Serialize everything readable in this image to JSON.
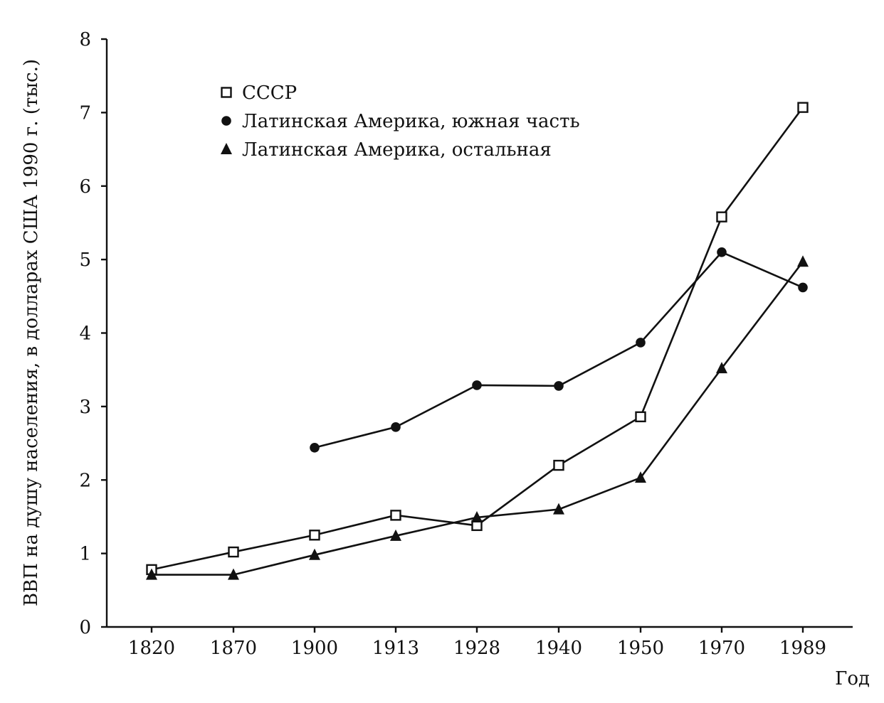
{
  "chart_data": {
    "type": "line",
    "title": "",
    "xlabel": "Год",
    "ylabel": "ВВП на душу населения, в долларах США 1990 г. (тыс.)",
    "categories": [
      "1820",
      "1870",
      "1900",
      "1913",
      "1928",
      "1940",
      "1950",
      "1970",
      "1989"
    ],
    "ylim": [
      0,
      8
    ],
    "yticks": [
      0,
      1,
      2,
      3,
      4,
      5,
      6,
      7,
      8
    ],
    "grid": false,
    "legend_position": "top-left",
    "series": [
      {
        "name": "СССР",
        "marker": "square-open",
        "values": [
          0.78,
          1.02,
          1.25,
          1.52,
          1.38,
          2.2,
          2.86,
          5.58,
          7.07
        ]
      },
      {
        "name": "Латинская Америка, южная часть",
        "marker": "circle-filled",
        "values": [
          null,
          null,
          2.44,
          2.72,
          3.29,
          3.28,
          3.87,
          5.1,
          4.62
        ]
      },
      {
        "name": "Латинская Америка, остальная",
        "marker": "triangle-filled",
        "values": [
          0.71,
          0.71,
          0.98,
          1.24,
          1.49,
          1.6,
          2.03,
          3.52,
          4.97
        ]
      }
    ]
  },
  "colors": {
    "ink": "#111111",
    "background": "#ffffff"
  }
}
